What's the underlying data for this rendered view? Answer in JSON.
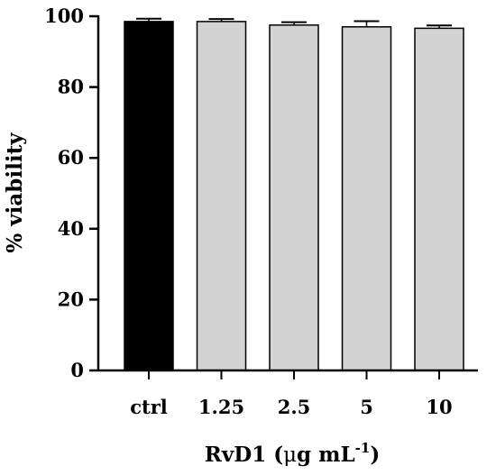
{
  "chart_data": {
    "type": "bar",
    "categories": [
      "ctrl",
      "1.25",
      "2.5",
      "5",
      "10"
    ],
    "values": [
      98.5,
      98.5,
      97.5,
      97.0,
      96.6
    ],
    "errors": [
      0.8,
      0.7,
      0.8,
      1.6,
      0.8
    ],
    "bar_colors": [
      "#000000",
      "#d3d3d3",
      "#d3d3d3",
      "#d3d3d3",
      "#d3d3d3"
    ],
    "ylim": [
      0,
      100
    ],
    "yticks": [
      0,
      20,
      40,
      60,
      80,
      100
    ],
    "ylabel": "% viability",
    "xlabel": {
      "prefix": "RvD1 (",
      "mu": "μ",
      "unit": "g mL",
      "superscript": "-1",
      "suffix": ")"
    }
  }
}
